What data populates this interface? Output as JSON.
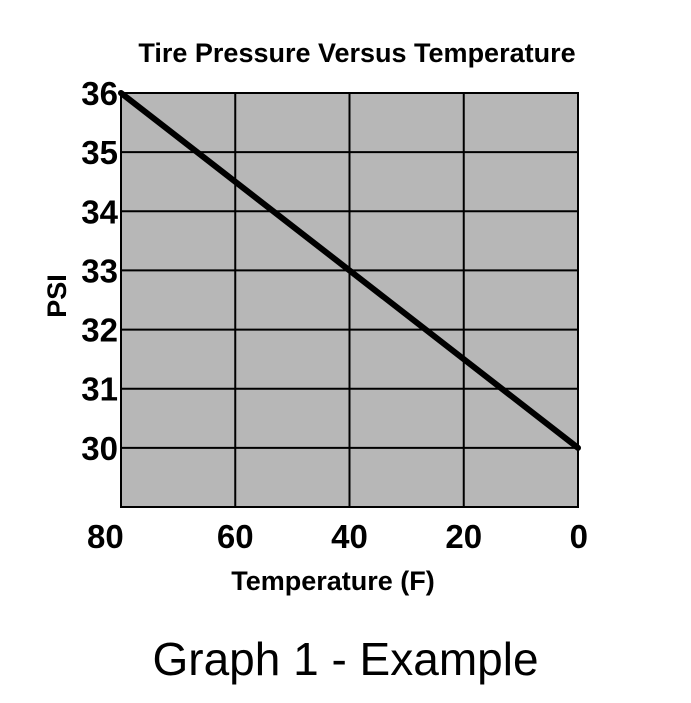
{
  "chart_data": {
    "type": "line",
    "title": "Tire Pressure Versus Temperature",
    "xlabel": "Temperature (F)",
    "ylabel": "PSI",
    "x_ticks": [
      80,
      60,
      40,
      20,
      0
    ],
    "y_ticks": [
      36,
      35,
      34,
      33,
      32,
      31,
      30
    ],
    "xlim": [
      80,
      0
    ],
    "ylim": [
      29,
      36
    ],
    "x_reversed": true,
    "grid": true,
    "legend": "none",
    "plot_background": "#b7b7b7",
    "line_color": "#000000",
    "series": [
      {
        "x": [
          80,
          0
        ],
        "y": [
          36,
          30
        ]
      }
    ]
  },
  "caption": "Graph 1 - Example"
}
